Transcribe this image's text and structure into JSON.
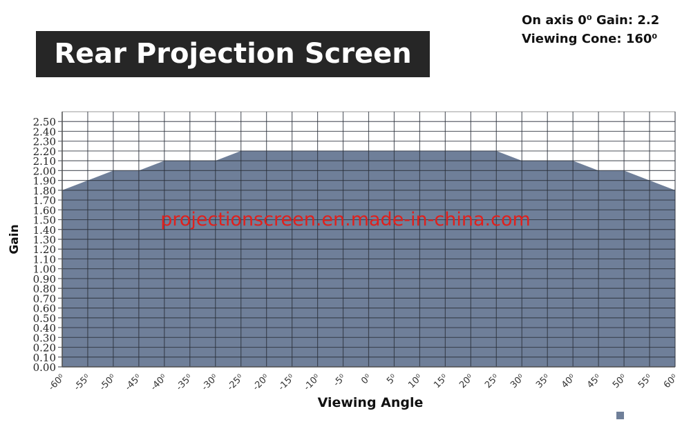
{
  "header": {
    "title": "Rear Projection Screen",
    "spec_lines": [
      "On axis 0⁰ Gain: 2.2",
      "Viewing Cone: 160⁰"
    ]
  },
  "watermark": "projectionscreen.en.made-in-china.com",
  "colors": {
    "fill": "#6f7f99",
    "grid": "#2a2f3a",
    "watermark": "#e0201c",
    "title_bg": "#262626"
  },
  "chart_data": {
    "type": "area",
    "title": "",
    "xlabel": "Viewing Angle",
    "ylabel": "Gain",
    "x": [
      -60,
      -55,
      -50,
      -45,
      -40,
      -35,
      -30,
      -25,
      -20,
      -15,
      -10,
      -5,
      0,
      5,
      10,
      15,
      20,
      25,
      30,
      35,
      40,
      45,
      50,
      55,
      60
    ],
    "x_tick_labels": [
      "-60⁰",
      "-55⁰",
      "-50⁰",
      "-45⁰",
      "-40⁰",
      "-35⁰",
      "-30⁰",
      "-25⁰",
      "-20⁰",
      "-15⁰",
      "-10⁰",
      "-5⁰",
      "0⁰",
      "5⁰",
      "10⁰",
      "15⁰",
      "20⁰",
      "25⁰",
      "30⁰",
      "35⁰",
      "40⁰",
      "45⁰",
      "50⁰",
      "55⁰",
      "60⁰"
    ],
    "series": [
      {
        "values": [
          1.8,
          1.9,
          2.0,
          2.0,
          2.1,
          2.1,
          2.1,
          2.2,
          2.2,
          2.2,
          2.2,
          2.2,
          2.2,
          2.2,
          2.2,
          2.2,
          2.2,
          2.2,
          2.1,
          2.1,
          2.1,
          2.0,
          2.0,
          1.9,
          1.8
        ]
      }
    ],
    "y_tick_labels": [
      "0.00",
      "0.10",
      "0.20",
      "0.30",
      "0.40",
      "0.50",
      "0.60",
      "0.70",
      "0.80",
      "0.90",
      "1.00",
      "1.10",
      "1.20",
      "1.30",
      "1.40",
      "1.50",
      "1.60",
      "1.70",
      "1.80",
      "1.90",
      "2.00",
      "2.10",
      "2.20",
      "2.30",
      "2.40",
      "2.50"
    ],
    "xlim": [
      -60,
      60
    ],
    "ylim": [
      0,
      2.6
    ],
    "grid": true,
    "legend": "bottom-right"
  }
}
